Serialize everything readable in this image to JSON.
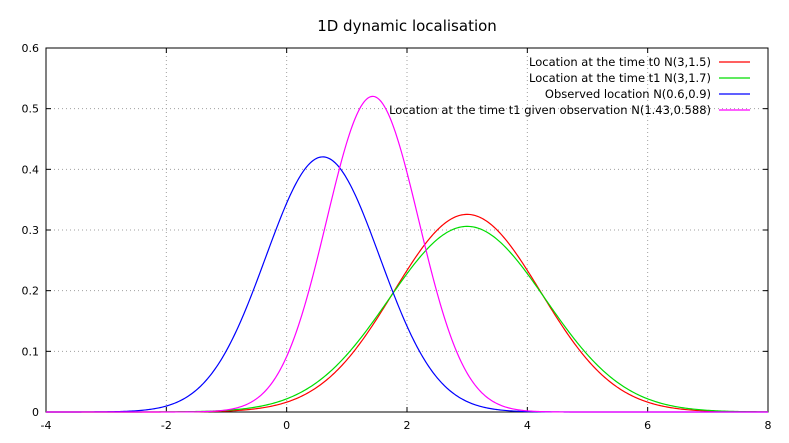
{
  "chart_data": {
    "type": "line",
    "title": "1D dynamic localisation",
    "xlabel": "",
    "ylabel": "",
    "xlim": [
      -4,
      8
    ],
    "ylim": [
      0,
      0.6
    ],
    "xticks": [
      "-4",
      "-2",
      "0",
      "2",
      "4",
      "6",
      "8"
    ],
    "yticks": [
      "0",
      "0.1",
      "0.2",
      "0.3",
      "0.4",
      "0.5",
      "0.6"
    ],
    "grid": true,
    "legend_position": "top-right",
    "series": [
      {
        "name": "Location at the time t0  N(3,1.5)",
        "color": "#ff0000",
        "function": "gaussian",
        "mean": 3,
        "variance": 1.5
      },
      {
        "name": "Location at the time t1 N(3,1.7)",
        "color": "#00dd00",
        "function": "gaussian",
        "mean": 3,
        "variance": 1.7
      },
      {
        "name": "Observed location N(0.6,0.9)",
        "color": "#0000ff",
        "function": "gaussian",
        "mean": 0.6,
        "variance": 0.9
      },
      {
        "name": "Location at the time t1 given observation N(1.43,0.588)",
        "color": "#ff00ff",
        "function": "gaussian",
        "mean": 1.43,
        "variance": 0.588
      }
    ]
  }
}
